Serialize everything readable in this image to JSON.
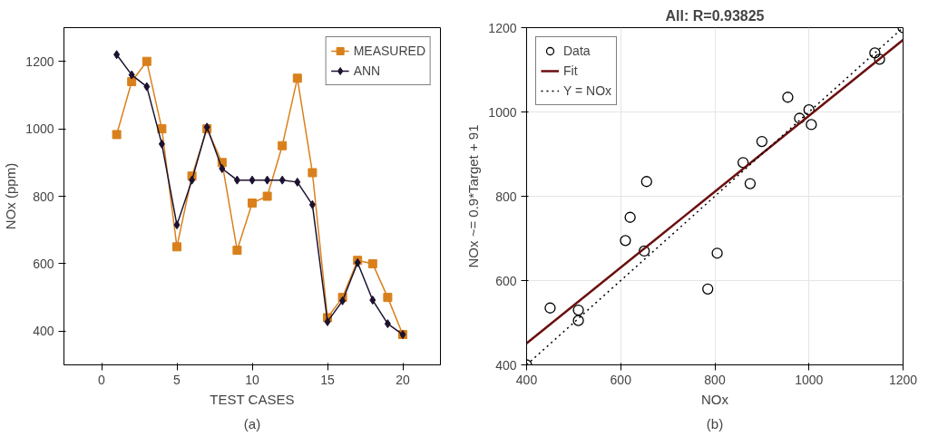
{
  "chart_data": [
    {
      "type": "line",
      "xlabel": "TEST CASES",
      "ylabel": "NOx (ppm)",
      "xlim": [
        -2.5,
        22.5
      ],
      "ylim": [
        300,
        1300
      ],
      "xticks": [
        0,
        5,
        10,
        15,
        20
      ],
      "yticks": [
        400,
        600,
        800,
        1000,
        1200
      ],
      "legend": "top right",
      "annotations": [
        "(a)"
      ],
      "x": [
        1,
        2,
        3,
        4,
        5,
        6,
        7,
        8,
        9,
        10,
        11,
        12,
        13,
        14,
        15,
        16,
        17,
        18,
        19,
        20
      ],
      "series": [
        {
          "name": "MEASURED",
          "color": "#d9801c",
          "marker": "square",
          "values": [
            983,
            1140,
            1200,
            1000,
            650,
            860,
            1000,
            900,
            640,
            780,
            800,
            950,
            1150,
            870,
            440,
            500,
            610,
            600,
            500,
            390
          ]
        },
        {
          "name": "ANN",
          "color": "#1c1230",
          "marker": "diamond",
          "values": [
            1220,
            1160,
            1125,
            955,
            715,
            848,
            1005,
            882,
            848,
            848,
            848,
            848,
            842,
            775,
            428,
            490,
            603,
            492,
            422,
            390
          ]
        }
      ]
    },
    {
      "type": "scatter",
      "title": "All: R=0.93825",
      "xlabel": "NOx",
      "ylabel": "NOx ~= 0.9*Target + 91",
      "xlim": [
        400,
        1200
      ],
      "ylim": [
        400,
        1200
      ],
      "xticks": [
        400,
        600,
        800,
        1000,
        1200
      ],
      "yticks": [
        400,
        600,
        800,
        1000,
        1200
      ],
      "grid": true,
      "legend": "top left",
      "annotations": [
        "(b)"
      ],
      "series": [
        {
          "name": "Data",
          "type": "scatter",
          "marker": "circle",
          "color": "#000000",
          "x": [
            400,
            450,
            510,
            510,
            610,
            620,
            650,
            655,
            785,
            805,
            860,
            875,
            900,
            955,
            980,
            1000,
            1005,
            1140,
            1150,
            1200
          ],
          "values": [
            400,
            535,
            530,
            505,
            695,
            750,
            670,
            835,
            580,
            665,
            880,
            830,
            930,
            1035,
            985,
            1005,
            970,
            1140,
            1125,
            1200
          ]
        },
        {
          "name": "Fit",
          "type": "line",
          "color": "#6b0f0f",
          "line_style": "solid",
          "x": [
            400,
            1200
          ],
          "values": [
            451,
            1171
          ]
        },
        {
          "name": "Y = NOx",
          "type": "line",
          "color": "#000000",
          "line_style": "dotted",
          "x": [
            400,
            1200
          ],
          "values": [
            400,
            1200
          ]
        }
      ]
    }
  ]
}
